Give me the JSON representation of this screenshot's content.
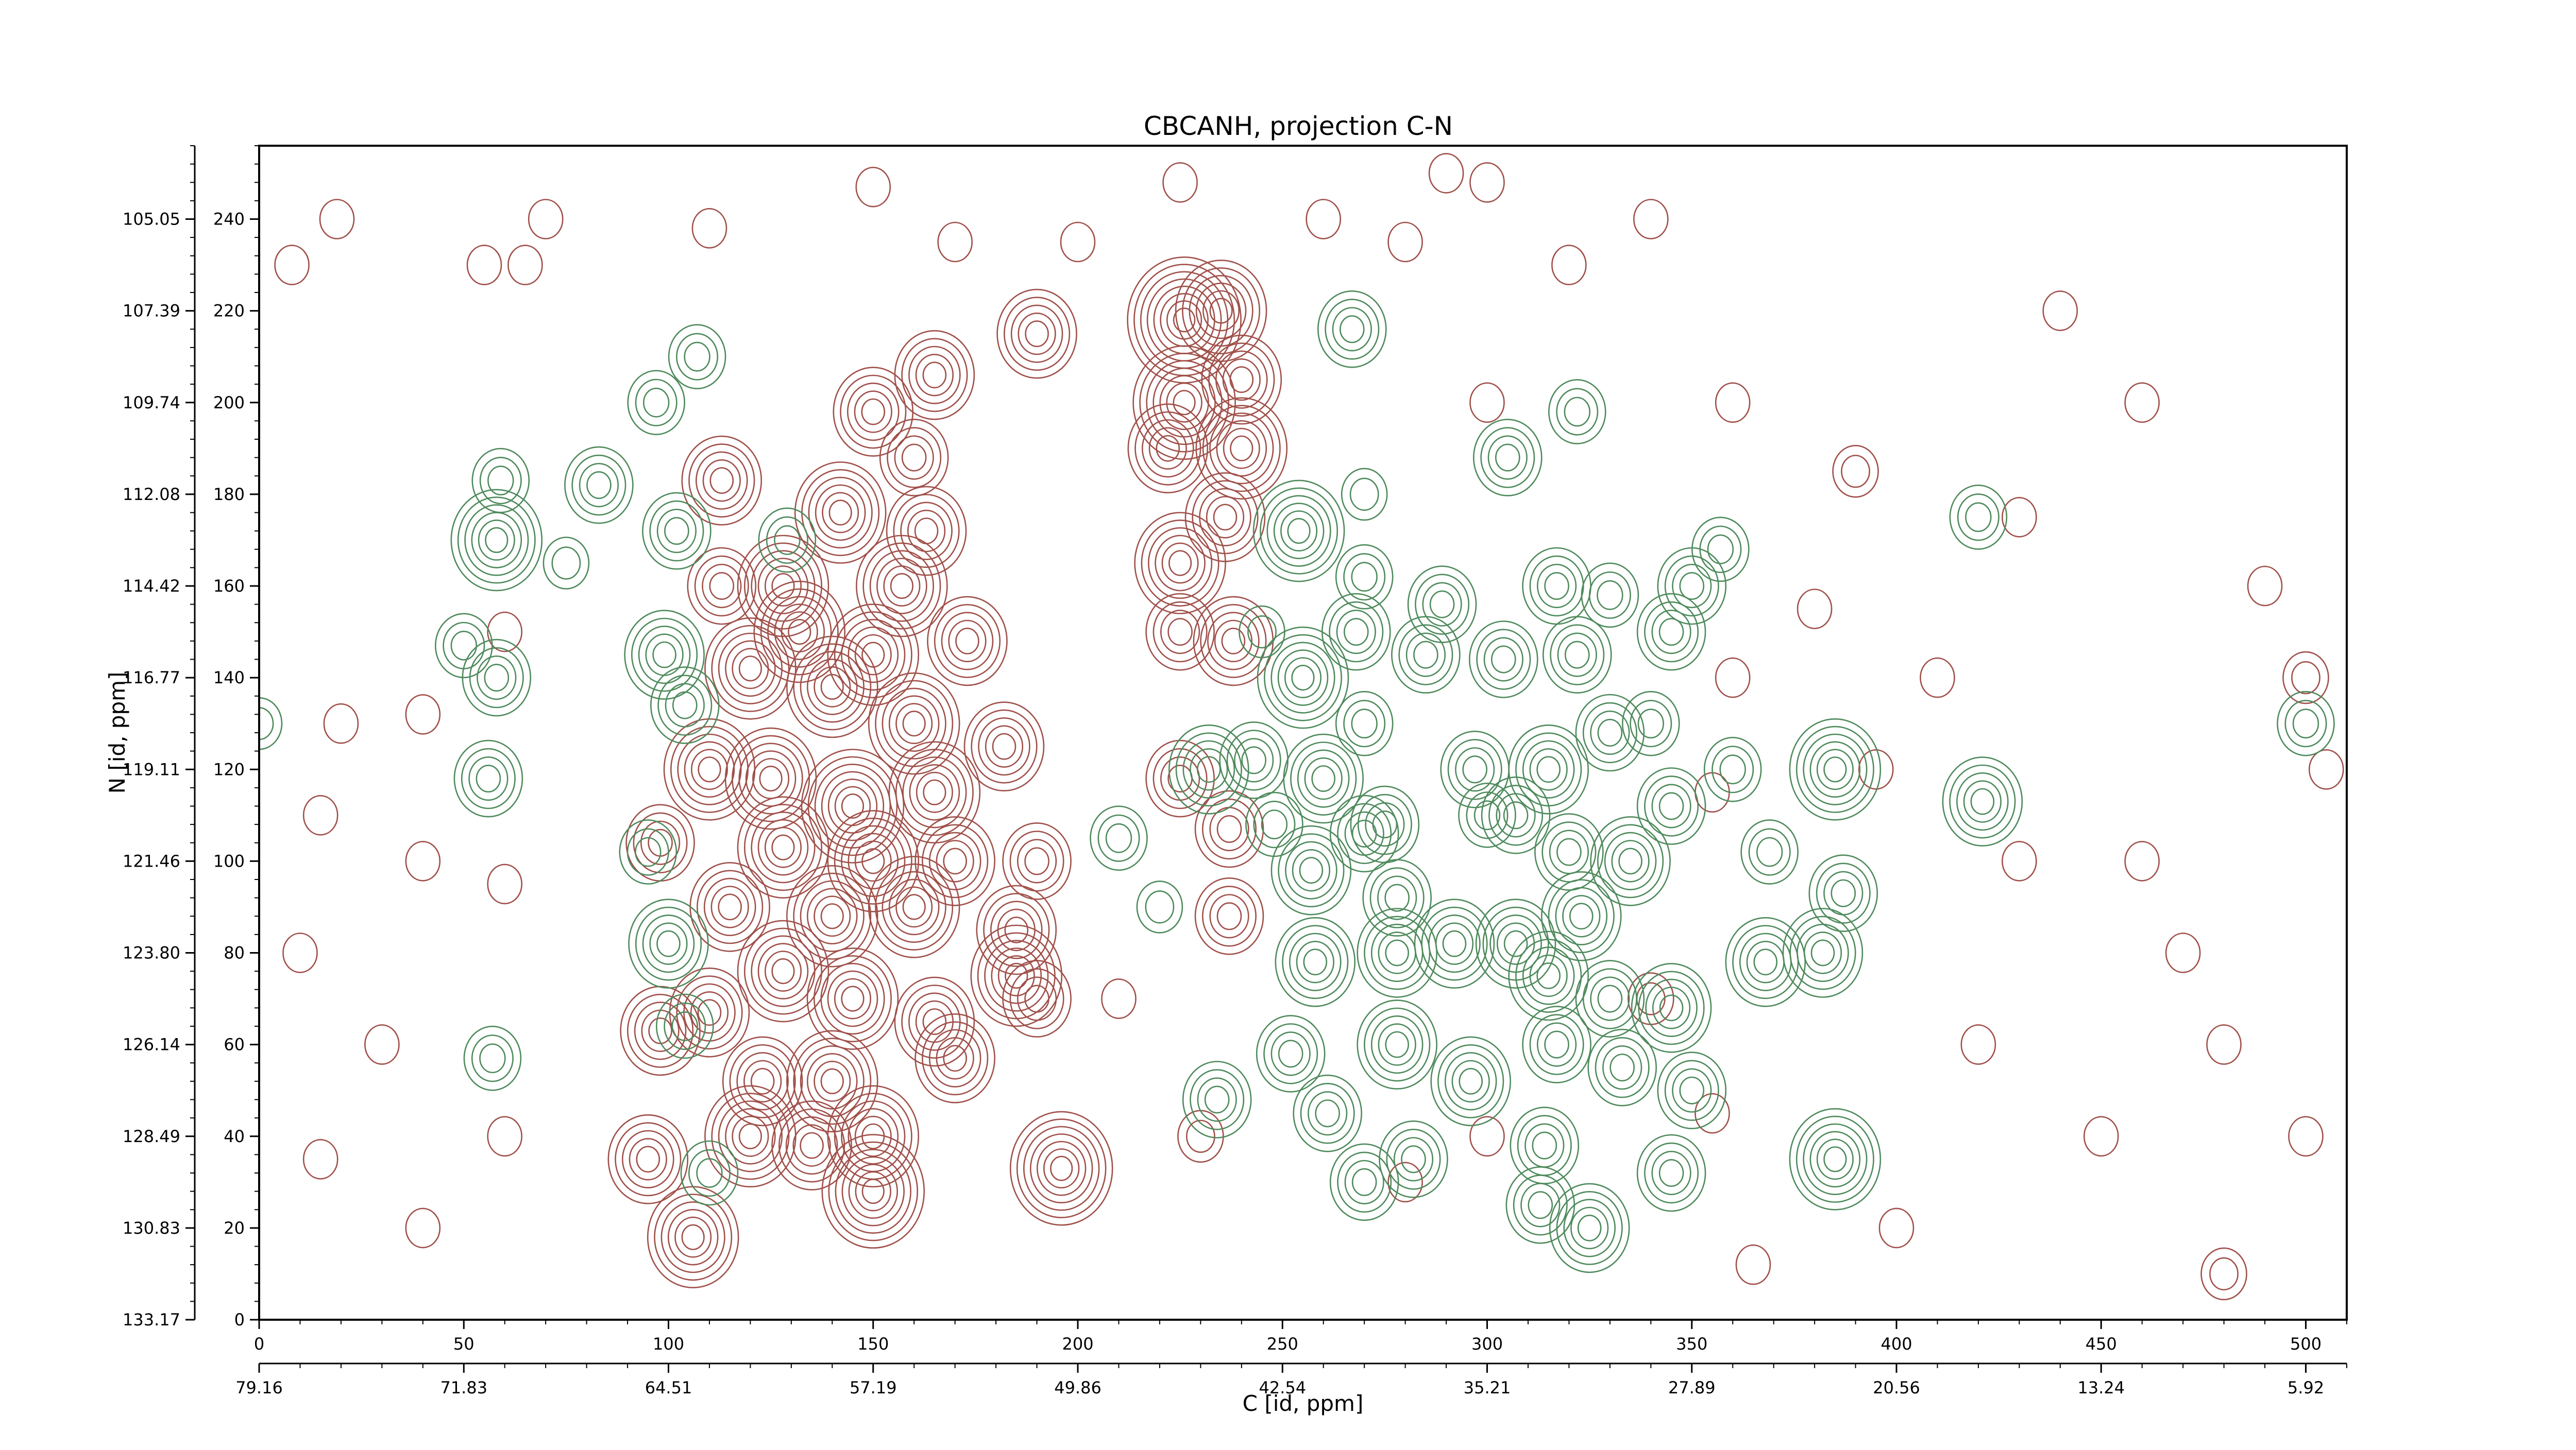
{
  "chart_data": {
    "type": "contour",
    "title": "CBCANH, projection C-N",
    "xlabel": "C [id, ppm]",
    "ylabel": "N [id, ppm]",
    "xlim": [
      0,
      510
    ],
    "ylim": [
      0,
      256
    ],
    "x_ticks": [
      0,
      50,
      100,
      150,
      200,
      250,
      300,
      350,
      400,
      450,
      500
    ],
    "x_ppm_ticks": [
      "79.16",
      "71.83",
      "64.51",
      "57.19",
      "49.86",
      "42.54",
      "35.21",
      "27.89",
      "20.56",
      "13.24",
      "5.92"
    ],
    "y_ticks": [
      0,
      20,
      40,
      60,
      80,
      100,
      120,
      140,
      160,
      180,
      200,
      220,
      240
    ],
    "y_ppm_ticks": [
      "133.17",
      "130.83",
      "128.49",
      "126.14",
      "123.80",
      "121.46",
      "119.11",
      "116.77",
      "114.42",
      "112.08",
      "109.74",
      "107.39",
      "105.05"
    ],
    "colors": {
      "positive": "#a0504a",
      "negative": "#4e8a5c"
    },
    "series": [
      {
        "name": "positive",
        "color": "#a0504a",
        "peaks": [
          [
            19,
            240,
            1
          ],
          [
            8,
            230,
            1
          ],
          [
            55,
            230,
            1
          ],
          [
            70,
            240,
            1
          ],
          [
            65,
            230,
            1
          ],
          [
            110,
            238,
            1
          ],
          [
            150,
            247,
            1
          ],
          [
            170,
            235,
            1
          ],
          [
            200,
            235,
            1
          ],
          [
            225,
            248,
            1
          ],
          [
            235,
            220,
            6
          ],
          [
            226,
            218,
            8
          ],
          [
            240,
            205,
            5
          ],
          [
            226,
            200,
            7
          ],
          [
            222,
            190,
            5
          ],
          [
            240,
            190,
            6
          ],
          [
            236,
            175,
            5
          ],
          [
            225,
            165,
            6
          ],
          [
            225,
            150,
            4
          ],
          [
            238,
            148,
            5
          ],
          [
            190,
            215,
            5
          ],
          [
            165,
            206,
            5
          ],
          [
            150,
            198,
            5
          ],
          [
            160,
            188,
            4
          ],
          [
            142,
            176,
            6
          ],
          [
            163,
            172,
            5
          ],
          [
            157,
            160,
            6
          ],
          [
            128,
            160,
            6
          ],
          [
            113,
            183,
            5
          ],
          [
            113,
            160,
            4
          ],
          [
            132,
            150,
            6
          ],
          [
            150,
            145,
            6
          ],
          [
            173,
            148,
            5
          ],
          [
            120,
            142,
            6
          ],
          [
            140,
            138,
            6
          ],
          [
            160,
            130,
            6
          ],
          [
            182,
            125,
            5
          ],
          [
            110,
            120,
            6
          ],
          [
            125,
            118,
            6
          ],
          [
            145,
            112,
            7
          ],
          [
            165,
            115,
            6
          ],
          [
            128,
            103,
            6
          ],
          [
            150,
            100,
            6
          ],
          [
            170,
            100,
            5
          ],
          [
            98,
            104,
            4
          ],
          [
            115,
            90,
            5
          ],
          [
            140,
            88,
            6
          ],
          [
            160,
            90,
            6
          ],
          [
            190,
            100,
            4
          ],
          [
            185,
            85,
            5
          ],
          [
            185,
            75,
            6
          ],
          [
            128,
            76,
            6
          ],
          [
            145,
            70,
            6
          ],
          [
            165,
            65,
            5
          ],
          [
            190,
            70,
            4
          ],
          [
            110,
            67,
            5
          ],
          [
            98,
            63,
            5
          ],
          [
            123,
            52,
            5
          ],
          [
            140,
            52,
            6
          ],
          [
            170,
            57,
            5
          ],
          [
            120,
            40,
            6
          ],
          [
            135,
            38,
            5
          ],
          [
            150,
            40,
            6
          ],
          [
            150,
            28,
            7
          ],
          [
            95,
            35,
            5
          ],
          [
            106,
            18,
            6
          ],
          [
            196,
            33,
            7
          ],
          [
            237,
            107,
            4
          ],
          [
            225,
            118,
            4
          ],
          [
            237,
            88,
            4
          ],
          [
            20,
            130,
            1
          ],
          [
            40,
            132,
            1
          ],
          [
            60,
            150,
            1
          ],
          [
            15,
            110,
            1
          ],
          [
            40,
            100,
            1
          ],
          [
            10,
            80,
            1
          ],
          [
            30,
            60,
            1
          ],
          [
            15,
            35,
            1
          ],
          [
            40,
            20,
            1
          ],
          [
            60,
            40,
            1
          ],
          [
            230,
            40,
            2
          ],
          [
            210,
            70,
            1
          ],
          [
            280,
            30,
            1
          ],
          [
            300,
            40,
            1
          ],
          [
            355,
            45,
            1
          ],
          [
            355,
            115,
            1
          ],
          [
            360,
            140,
            1
          ],
          [
            380,
            155,
            1
          ],
          [
            390,
            185,
            2
          ],
          [
            395,
            120,
            1
          ],
          [
            410,
            140,
            1
          ],
          [
            430,
            175,
            1
          ],
          [
            440,
            220,
            1
          ],
          [
            460,
            200,
            1
          ],
          [
            490,
            160,
            1
          ],
          [
            500,
            140,
            2
          ],
          [
            460,
            100,
            1
          ],
          [
            470,
            80,
            1
          ],
          [
            480,
            60,
            1
          ],
          [
            500,
            40,
            1
          ],
          [
            450,
            40,
            1
          ],
          [
            420,
            60,
            1
          ],
          [
            400,
            20,
            1
          ],
          [
            365,
            12,
            1
          ],
          [
            480,
            10,
            2
          ],
          [
            505,
            120,
            1
          ],
          [
            340,
            240,
            1
          ],
          [
            320,
            230,
            1
          ],
          [
            300,
            248,
            1
          ],
          [
            280,
            235,
            1
          ],
          [
            360,
            200,
            1
          ],
          [
            300,
            200,
            1
          ],
          [
            340,
            70,
            2
          ],
          [
            430,
            100,
            1
          ],
          [
            260,
            240,
            1
          ],
          [
            60,
            95,
            1
          ],
          [
            290,
            250,
            1
          ]
        ]
      },
      {
        "name": "negative",
        "color": "#4e8a5c",
        "peaks": [
          [
            59,
            183,
            3
          ],
          [
            58,
            170,
            6
          ],
          [
            50,
            147,
            3
          ],
          [
            58,
            140,
            4
          ],
          [
            56,
            118,
            4
          ],
          [
            83,
            182,
            4
          ],
          [
            102,
            172,
            4
          ],
          [
            99,
            145,
            5
          ],
          [
            104,
            134,
            4
          ],
          [
            95,
            102,
            3
          ],
          [
            100,
            82,
            5
          ],
          [
            57,
            57,
            3
          ],
          [
            104,
            64,
            3
          ],
          [
            110,
            32,
            3
          ],
          [
            129,
            170,
            3
          ],
          [
            97,
            200,
            3
          ],
          [
            107,
            210,
            3
          ],
          [
            267,
            216,
            4
          ],
          [
            322,
            198,
            3
          ],
          [
            305,
            188,
            4
          ],
          [
            254,
            172,
            6
          ],
          [
            270,
            162,
            3
          ],
          [
            268,
            150,
            4
          ],
          [
            289,
            156,
            4
          ],
          [
            255,
            140,
            6
          ],
          [
            285,
            145,
            4
          ],
          [
            304,
            144,
            4
          ],
          [
            317,
            160,
            4
          ],
          [
            322,
            145,
            4
          ],
          [
            330,
            158,
            3
          ],
          [
            345,
            150,
            4
          ],
          [
            350,
            160,
            4
          ],
          [
            357,
            168,
            3
          ],
          [
            232,
            120,
            5
          ],
          [
            243,
            122,
            4
          ],
          [
            260,
            118,
            5
          ],
          [
            270,
            106,
            4
          ],
          [
            257,
            98,
            5
          ],
          [
            275,
            108,
            4
          ],
          [
            278,
            92,
            4
          ],
          [
            258,
            78,
            5
          ],
          [
            278,
            80,
            5
          ],
          [
            297,
            120,
            4
          ],
          [
            307,
            110,
            4
          ],
          [
            315,
            120,
            5
          ],
          [
            330,
            128,
            4
          ],
          [
            345,
            112,
            4
          ],
          [
            335,
            100,
            5
          ],
          [
            320,
            102,
            4
          ],
          [
            323,
            88,
            5
          ],
          [
            307,
            82,
            5
          ],
          [
            292,
            82,
            5
          ],
          [
            315,
            75,
            5
          ],
          [
            330,
            70,
            4
          ],
          [
            345,
            68,
            5
          ],
          [
            368,
            78,
            5
          ],
          [
            382,
            80,
            5
          ],
          [
            387,
            93,
            4
          ],
          [
            278,
            60,
            5
          ],
          [
            296,
            52,
            5
          ],
          [
            317,
            60,
            4
          ],
          [
            333,
            55,
            4
          ],
          [
            350,
            50,
            4
          ],
          [
            252,
            58,
            4
          ],
          [
            234,
            48,
            4
          ],
          [
            261,
            45,
            4
          ],
          [
            270,
            30,
            4
          ],
          [
            282,
            35,
            4
          ],
          [
            314,
            38,
            4
          ],
          [
            313,
            25,
            4
          ],
          [
            325,
            20,
            5
          ],
          [
            345,
            32,
            4
          ],
          [
            385,
            120,
            6
          ],
          [
            421,
            113,
            5
          ],
          [
            369,
            102,
            3
          ],
          [
            385,
            35,
            6
          ],
          [
            420,
            175,
            3
          ],
          [
            210,
            105,
            3
          ],
          [
            248,
            108,
            3
          ],
          [
            340,
            130,
            3
          ],
          [
            300,
            110,
            3
          ],
          [
            270,
            130,
            3
          ],
          [
            360,
            120,
            3
          ],
          [
            500,
            130,
            3
          ],
          [
            0,
            130,
            2
          ],
          [
            75,
            165,
            2
          ],
          [
            220,
            90,
            2
          ],
          [
            270,
            180,
            2
          ],
          [
            245,
            150,
            2
          ]
        ]
      }
    ]
  }
}
